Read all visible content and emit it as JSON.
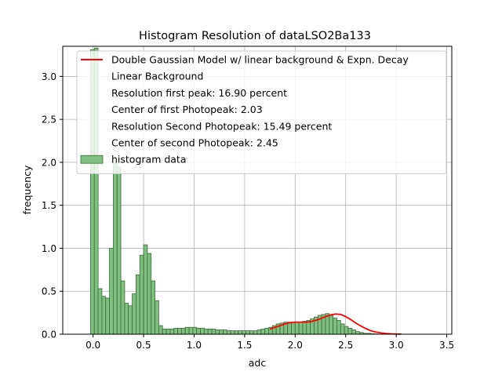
{
  "chart_data": {
    "type": "bar",
    "title": "Histogram Resolution of dataLSO2Ba133",
    "xlabel": "adc",
    "ylabel": "frequency",
    "xlim": [
      -0.3,
      3.55
    ],
    "ylim": [
      0,
      3.35
    ],
    "grid": true,
    "legend_position": "top-right",
    "x_ticks": [
      {
        "value": 0.0,
        "label": "0.0"
      },
      {
        "value": 0.5,
        "label": "0.5"
      },
      {
        "value": 1.0,
        "label": "1.0"
      },
      {
        "value": 1.5,
        "label": "1.5"
      },
      {
        "value": 2.0,
        "label": "2.0"
      },
      {
        "value": 2.5,
        "label": "2.5"
      },
      {
        "value": 3.0,
        "label": "3.0"
      },
      {
        "value": 3.5,
        "label": "3.5"
      }
    ],
    "y_ticks": [
      {
        "value": 0.0,
        "label": "0.0"
      },
      {
        "value": 0.5,
        "label": "0.5"
      },
      {
        "value": 1.0,
        "label": "1.0"
      },
      {
        "value": 1.5,
        "label": "1.5"
      },
      {
        "value": 2.0,
        "label": "2.0"
      },
      {
        "value": 2.5,
        "label": "2.5"
      },
      {
        "value": 3.0,
        "label": "3.0"
      }
    ],
    "legend": [
      {
        "label": "Double Gaussian Model w/ linear background & Expn. Decay",
        "marker": "line",
        "color": "#ff0000"
      },
      {
        "label": "Linear Background",
        "marker": "none",
        "color": ""
      },
      {
        "label": "Resolution first peak: 16.90 percent",
        "marker": "none",
        "color": ""
      },
      {
        "label": "Center of first Photopeak: 2.03",
        "marker": "none",
        "color": ""
      },
      {
        "label": "Resolution Second Photopeak: 15.49 percent",
        "marker": "none",
        "color": ""
      },
      {
        "label": "Center of second Photopeak: 2.45",
        "marker": "none",
        "color": ""
      },
      {
        "label": "histogram data",
        "marker": "patch",
        "color": "#7fbf7f"
      }
    ],
    "histogram": {
      "name": "histogram data",
      "color": "#7fbf7f",
      "edgecolor": "#3a6b3a",
      "bin_start": -0.025,
      "bin_width": 0.0375,
      "values": [
        3.31,
        3.33,
        0.53,
        0.44,
        0.42,
        1.0,
        2.01,
        1.94,
        0.62,
        0.36,
        0.33,
        0.47,
        0.69,
        0.92,
        1.04,
        0.94,
        0.62,
        0.39,
        0.1,
        0.06,
        0.06,
        0.06,
        0.07,
        0.07,
        0.07,
        0.08,
        0.08,
        0.08,
        0.07,
        0.07,
        0.06,
        0.06,
        0.06,
        0.05,
        0.05,
        0.05,
        0.04,
        0.04,
        0.04,
        0.04,
        0.04,
        0.04,
        0.04,
        0.04,
        0.05,
        0.06,
        0.07,
        0.08,
        0.1,
        0.12,
        0.13,
        0.14,
        0.14,
        0.14,
        0.14,
        0.14,
        0.15,
        0.16,
        0.18,
        0.2,
        0.22,
        0.23,
        0.24,
        0.22,
        0.19,
        0.16,
        0.12,
        0.09,
        0.07,
        0.05,
        0.03,
        0.02,
        0.01,
        0.01,
        0.005,
        0.003,
        0.002,
        0.001,
        0.0,
        0.0,
        0.0,
        0.0,
        0.0,
        0.0,
        0.0,
        0.0,
        0.0,
        0.0,
        0.0,
        0.0,
        0.0,
        0.0
      ]
    },
    "series": [
      {
        "name": "Double Gaussian Model w/ linear background & Expn. Decay",
        "type": "line",
        "color": "#ff0000",
        "x": [
          1.75,
          1.8,
          1.85,
          1.9,
          1.95,
          2.0,
          2.05,
          2.1,
          2.15,
          2.2,
          2.25,
          2.3,
          2.35,
          2.4,
          2.45,
          2.5,
          2.55,
          2.6,
          2.65,
          2.7,
          2.75,
          2.8,
          2.85,
          2.9,
          2.95,
          3.0,
          3.05
        ],
        "y": [
          0.06,
          0.08,
          0.1,
          0.12,
          0.135,
          0.14,
          0.14,
          0.14,
          0.145,
          0.16,
          0.18,
          0.205,
          0.225,
          0.235,
          0.23,
          0.205,
          0.17,
          0.13,
          0.095,
          0.065,
          0.04,
          0.025,
          0.015,
          0.008,
          0.004,
          0.002,
          0.001
        ]
      }
    ]
  }
}
